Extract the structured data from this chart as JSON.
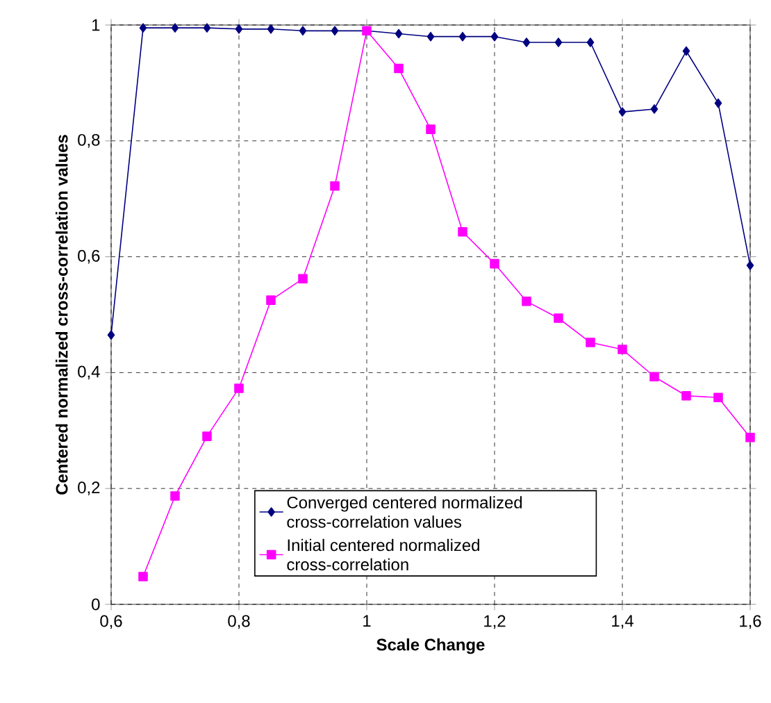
{
  "chart_data": {
    "type": "line",
    "xlabel": "Scale Change",
    "ylabel": "Centered normalized cross-correlation values",
    "x": [
      0.6,
      0.65,
      0.7,
      0.75,
      0.8,
      0.85,
      0.9,
      0.95,
      1.0,
      1.05,
      1.1,
      1.15,
      1.2,
      1.25,
      1.3,
      1.35,
      1.4,
      1.45,
      1.5,
      1.55,
      1.6
    ],
    "series": [
      {
        "name": "Converged centered normalized cross-correlation values",
        "color": "#000080",
        "marker": "diamond",
        "values": [
          0.465,
          0.995,
          0.995,
          0.995,
          0.993,
          0.993,
          0.99,
          0.99,
          0.99,
          0.985,
          0.98,
          0.98,
          0.98,
          0.97,
          0.97,
          0.97,
          0.85,
          0.855,
          0.955,
          0.865,
          0.585
        ]
      },
      {
        "name": "Initial centered normalized cross-correlation",
        "color": "#ff00ff",
        "marker": "square",
        "values": [
          null,
          0.048,
          0.187,
          0.29,
          0.373,
          0.525,
          0.562,
          0.722,
          0.99,
          0.925,
          0.82,
          0.643,
          0.588,
          0.523,
          0.494,
          0.452,
          0.44,
          0.393,
          0.36,
          0.357,
          0.288
        ]
      }
    ],
    "xlim": [
      0.6,
      1.6
    ],
    "ylim": [
      0,
      1
    ],
    "xticks": [
      {
        "value": 0.6,
        "label": "0,6"
      },
      {
        "value": 0.8,
        "label": "0,8"
      },
      1,
      {
        "value": 1.2,
        "label": "1,2"
      },
      {
        "value": 1.4,
        "label": "1,4"
      },
      {
        "value": 1.6,
        "label": "1,6"
      }
    ],
    "yticks": [
      0,
      {
        "value": 0.2,
        "label": "0,2"
      },
      {
        "value": 0.4,
        "label": "0,4"
      },
      {
        "value": 0.6,
        "label": "0,6"
      },
      {
        "value": 0.8,
        "label": "0,8"
      },
      1
    ],
    "grid": true,
    "legend": "bottom",
    "line_style": "solid"
  }
}
